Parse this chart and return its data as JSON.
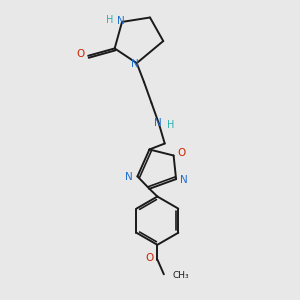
{
  "background_color": "#e8e8e8",
  "bond_color": "#1a1a1a",
  "N_color": "#1e6fcc",
  "O_color": "#cc2200",
  "H_color": "#2ab0b0",
  "figsize": [
    3.0,
    3.0
  ],
  "dpi": 100,
  "xlim": [
    0,
    10
  ],
  "ylim": [
    0,
    10
  ]
}
